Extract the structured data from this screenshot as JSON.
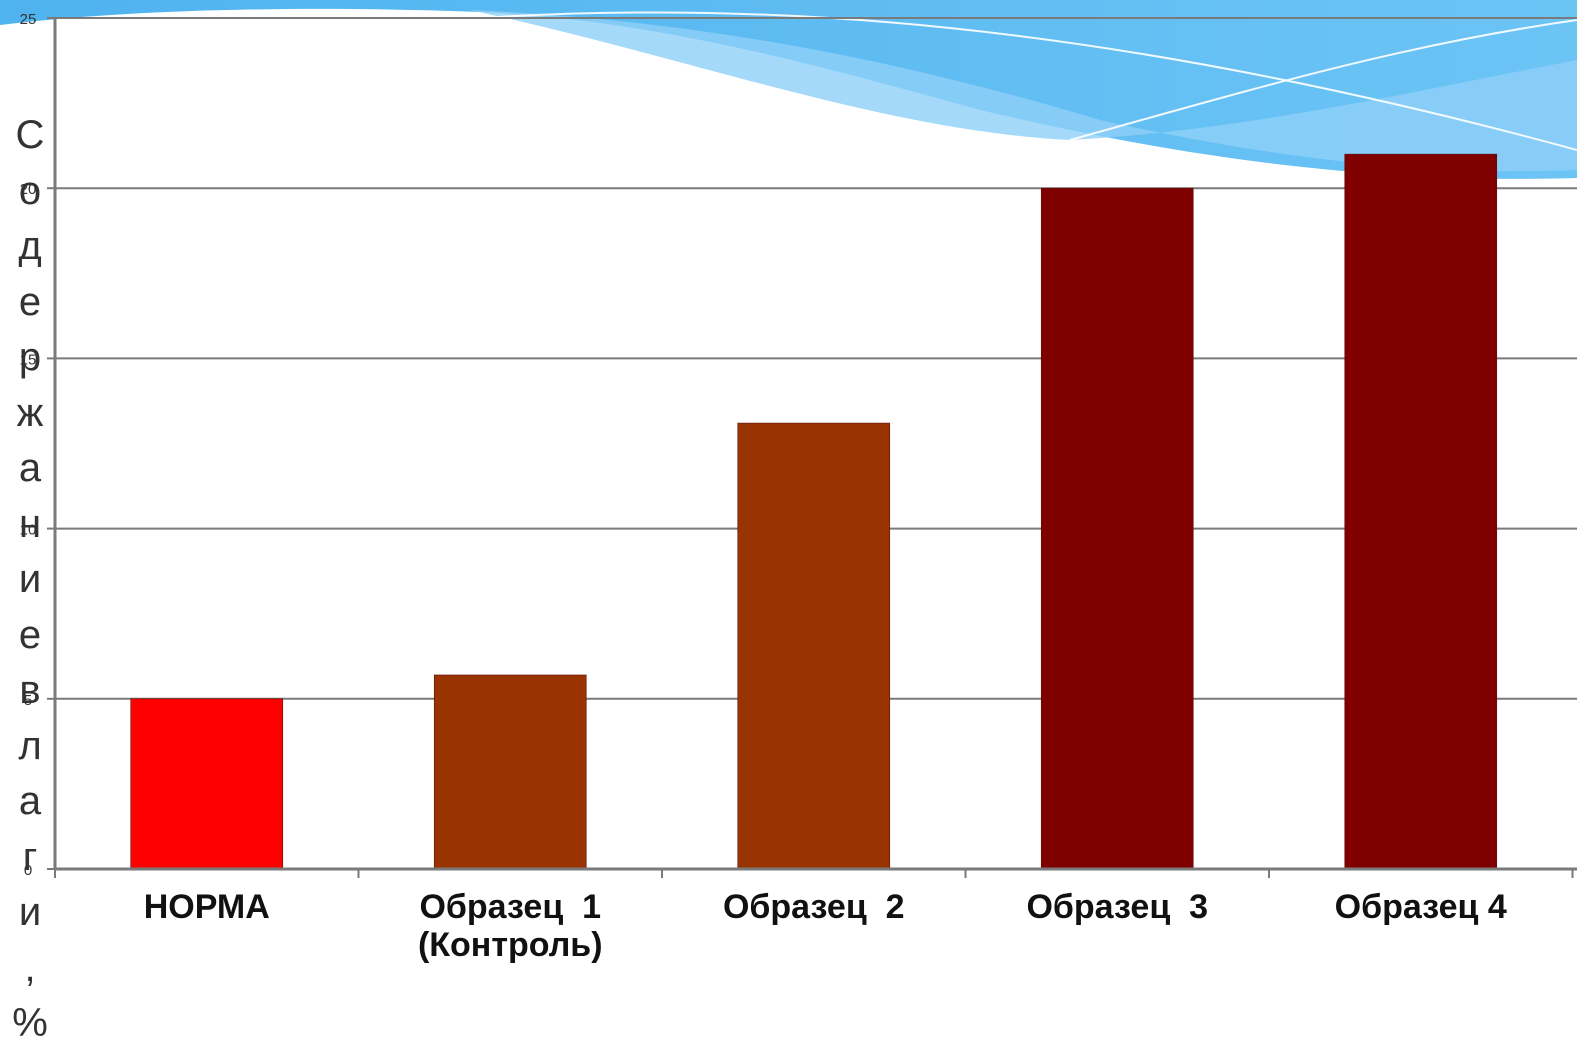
{
  "chart_data": {
    "type": "bar",
    "categories": [
      "НОРМА",
      "Образец  1\n(Контроль)",
      "Образец  2",
      "Образец  3",
      "Образец 4"
    ],
    "values": [
      5,
      5.7,
      13.1,
      20,
      21
    ],
    "colors": [
      "#ff0000",
      "#993300",
      "#993300",
      "#800000",
      "#800000"
    ],
    "ylabel": "Содержание влаги, %",
    "ylim": [
      0,
      25
    ],
    "yticks": [
      0,
      5,
      10,
      15,
      20,
      25
    ],
    "grid": true
  }
}
